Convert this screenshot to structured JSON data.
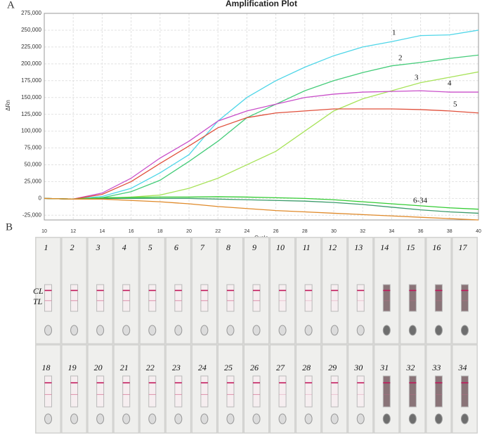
{
  "panel_a": {
    "label": "A"
  },
  "chart_data": {
    "type": "line",
    "title": "Amplification Plot",
    "x_label": "Cycle",
    "y_label": "ΔRn",
    "x": [
      10,
      12,
      14,
      16,
      18,
      20,
      22,
      24,
      26,
      28,
      30,
      32,
      34,
      36,
      38,
      40
    ],
    "xlim": [
      10,
      40
    ],
    "xticks": [
      10,
      12,
      14,
      16,
      18,
      20,
      22,
      24,
      26,
      28,
      30,
      32,
      34,
      36,
      38,
      40
    ],
    "ylim": [
      -32000,
      275000
    ],
    "yticks": [
      {
        "value": -25000,
        "label": "-25,000"
      },
      0,
      {
        "value": 25000,
        "label": "25,000"
      },
      {
        "value": 50000,
        "label": "50,000"
      },
      {
        "value": 75000,
        "label": "75,000"
      },
      {
        "value": 100000,
        "label": "100,000"
      },
      {
        "value": 125000,
        "label": "125,000"
      },
      {
        "value": 150000,
        "label": "150,000"
      },
      {
        "value": 175000,
        "label": "175,000"
      },
      {
        "value": 200000,
        "label": "200,000"
      },
      {
        "value": 225000,
        "label": "225,000"
      },
      {
        "value": 250000,
        "label": "250,000"
      },
      {
        "value": 275000,
        "label": "275,000"
      }
    ],
    "grid": true,
    "series": [
      {
        "name": "1",
        "color": "#4fd6e8",
        "values": [
          0,
          -1000,
          3000,
          15000,
          38000,
          65000,
          115000,
          150000,
          175000,
          195000,
          212000,
          225000,
          233000,
          242000,
          243000,
          250000
        ]
      },
      {
        "name": "2",
        "color": "#45cc7a",
        "values": [
          0,
          -1000,
          1000,
          10000,
          27000,
          55000,
          85000,
          120000,
          140000,
          160000,
          175000,
          187000,
          197000,
          202000,
          208000,
          213000
        ]
      },
      {
        "name": "3",
        "color": "#a8e35a",
        "values": [
          0,
          -1000,
          0,
          2000,
          5000,
          15000,
          30000,
          50000,
          70000,
          100000,
          130000,
          148000,
          160000,
          172000,
          180000,
          188000
        ]
      },
      {
        "name": "4",
        "color": "#c94fc9",
        "values": [
          0,
          -1000,
          8000,
          30000,
          60000,
          85000,
          115000,
          130000,
          140000,
          150000,
          155000,
          158000,
          159000,
          160000,
          158000,
          158000
        ]
      },
      {
        "name": "5",
        "color": "#e0503c",
        "values": [
          0,
          -1000,
          6000,
          25000,
          52000,
          78000,
          105000,
          120000,
          127000,
          130000,
          133000,
          133000,
          133000,
          132000,
          130000,
          127000
        ]
      },
      {
        "name": "6-34",
        "color": "#3a9a6a",
        "values": [
          0,
          -1000,
          0,
          0,
          0,
          0,
          -1000,
          -2000,
          -3000,
          -4000,
          -6000,
          -9000,
          -13000,
          -17000,
          -20000,
          -22000
        ]
      },
      {
        "color": "#33cc33",
        "values": [
          0,
          -1000,
          1000,
          1500,
          2000,
          2000,
          2500,
          2000,
          1000,
          0,
          -2000,
          -5000,
          -8000,
          -11000,
          -14000,
          -16000
        ]
      },
      {
        "color": "#e08a2a",
        "values": [
          0,
          -1000,
          -1000,
          -3000,
          -5000,
          -8000,
          -12000,
          -15000,
          -18000,
          -20000,
          -22000,
          -24000,
          -26000,
          -28000,
          -30000,
          -32000
        ]
      }
    ]
  },
  "panel_b": {
    "label": "B",
    "control_line": "CL",
    "test_line": "TL",
    "strips": [
      "1",
      "2",
      "3",
      "4",
      "5",
      "6",
      "7",
      "8",
      "9",
      "10",
      "11",
      "12",
      "13",
      "14",
      "15",
      "16",
      "17",
      "18",
      "19",
      "20",
      "21",
      "22",
      "23",
      "24",
      "25",
      "26",
      "27",
      "28",
      "29",
      "30",
      "31",
      "32",
      "33",
      "34"
    ]
  }
}
